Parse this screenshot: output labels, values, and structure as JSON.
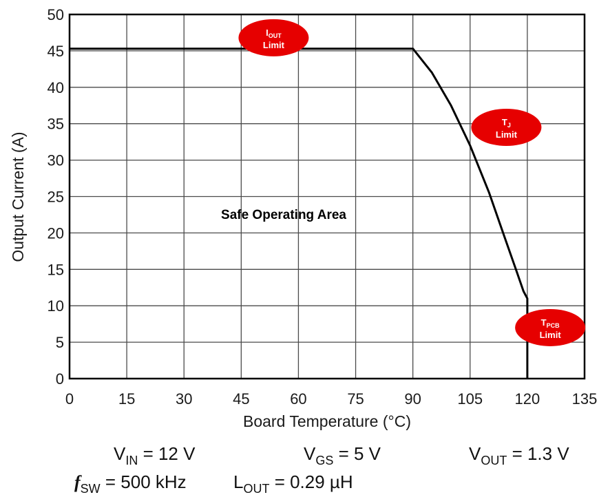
{
  "chart_data": {
    "type": "line",
    "xlabel": "Board Temperature (°C)",
    "ylabel": "Output Current (A)",
    "xlim": [
      0,
      135
    ],
    "ylim": [
      0,
      50
    ],
    "xticks": [
      0,
      15,
      30,
      45,
      60,
      75,
      90,
      105,
      120,
      135
    ],
    "yticks": [
      0,
      5,
      10,
      15,
      20,
      25,
      30,
      35,
      40,
      45,
      50
    ],
    "grid": true,
    "series": [
      {
        "name": "",
        "x": [
          0,
          90,
          95,
          100,
          105,
          110,
          114,
          117,
          119,
          120,
          120
        ],
        "y": [
          45.3,
          45.3,
          42,
          37.5,
          32,
          25.5,
          19.5,
          15,
          12,
          11,
          0
        ]
      }
    ],
    "region_label": "Safe Operating Area",
    "annotations": [
      {
        "main": "I",
        "sub": "OUT",
        "line2": "Limit",
        "x": 53.5,
        "y": 46.8
      },
      {
        "main": "T",
        "sub": "J",
        "line2": "Limit",
        "x": 114.5,
        "y": 34.5
      },
      {
        "main": "T",
        "sub": "PCB",
        "line2": "Limit",
        "x": 126,
        "y": 7.0
      }
    ],
    "color": "#000000",
    "badge_color": "#e60000"
  },
  "conditions": {
    "vin": {
      "sym": "V",
      "sub": "IN",
      "rest": " = 12 V"
    },
    "vgs": {
      "sym": "V",
      "sub": "GS",
      "rest": " = 5 V"
    },
    "vout": {
      "sym": "V",
      "sub": "OUT",
      "rest": " = 1.3 V"
    },
    "fsw": {
      "sym": "f",
      "sub": "SW",
      "rest": " = 500 kHz"
    },
    "lout": {
      "sym": "L",
      "sub": "OUT",
      "rest": " = 0.29 µH"
    }
  }
}
